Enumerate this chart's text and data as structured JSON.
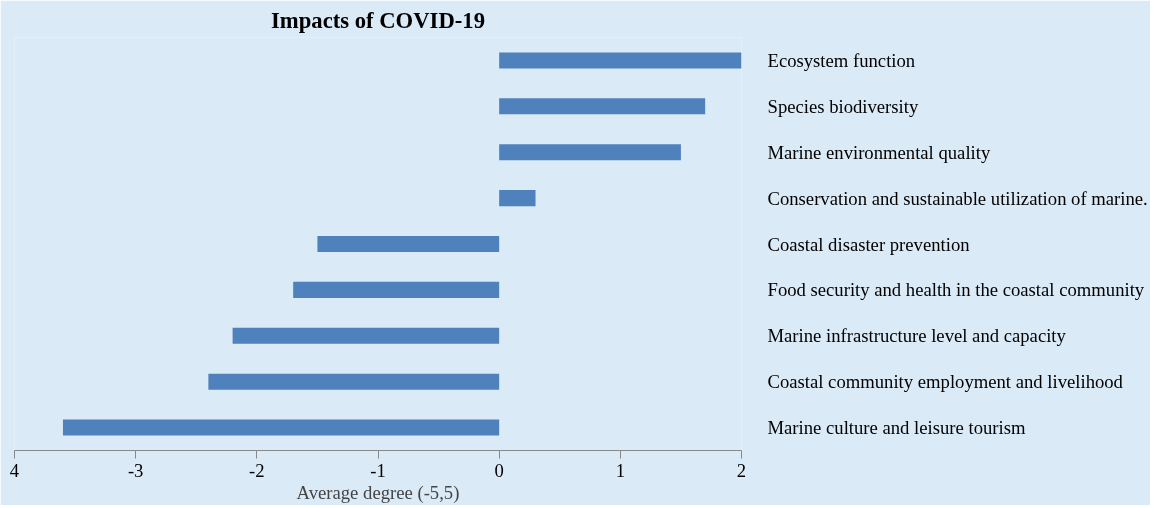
{
  "chart_data": {
    "type": "bar",
    "orientation": "horizontal",
    "title": "Impacts of COVID-19",
    "xlabel": "Average degree (-5,5)",
    "categories": [
      "Ecosystem function",
      "Species biodiversity",
      "Marine environmental quality",
      "Conservation and sustainable utilization of marine.",
      "Coastal disaster prevention",
      "Food security and health in the coastal community",
      "Marine infrastructure level and capacity",
      "Coastal community employment and livelihood",
      "Marine culture and leisure tourism"
    ],
    "values": [
      2.0,
      1.7,
      1.5,
      0.3,
      -1.5,
      -1.7,
      -2.2,
      -2.4,
      -3.6
    ],
    "color": "#4f81bd",
    "xlim": [
      -4,
      2
    ],
    "xticks": [
      {
        "value": -4,
        "label": "4"
      },
      -3,
      -2,
      -1,
      0,
      1,
      2
    ],
    "grid": false
  }
}
